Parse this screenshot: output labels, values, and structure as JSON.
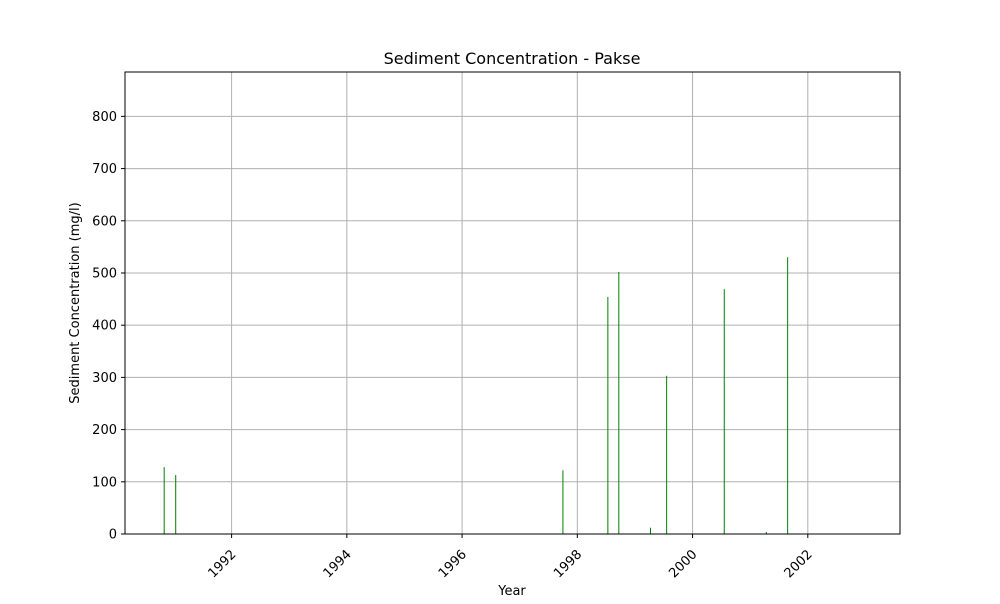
{
  "chart_data": {
    "type": "bar",
    "title": "Sediment Concentration - Pakse",
    "xlabel": "Year",
    "ylabel": "Sediment Concentration (mg/l)",
    "xlim": [
      1990.15,
      2003.6
    ],
    "ylim": [
      0,
      885
    ],
    "xticks": [
      1992,
      1994,
      1996,
      1998,
      2000,
      2002
    ],
    "yticks": [
      0,
      100,
      200,
      300,
      400,
      500,
      600,
      700,
      800
    ],
    "grid": true,
    "bar_color": "#008000",
    "series": [
      {
        "name": "Sediment Concentration",
        "x": [
          1990.83,
          1991.03,
          1997.75,
          1998.53,
          1998.72,
          1999.27,
          1999.55,
          2000.55,
          2001.28,
          2001.65
        ],
        "values": [
          128,
          113,
          122,
          454,
          502,
          12,
          303,
          469,
          4,
          530
        ]
      }
    ]
  }
}
